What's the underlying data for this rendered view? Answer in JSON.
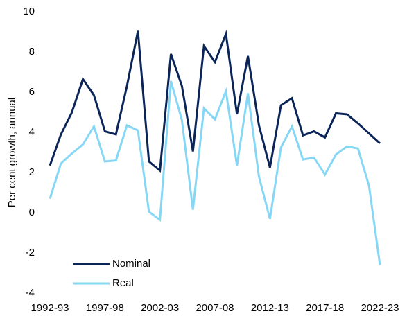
{
  "chart_data": {
    "type": "line",
    "y_label": "Per cent growth, annual",
    "categories": [
      "1992-93",
      null,
      null,
      null,
      null,
      "1997-98",
      null,
      null,
      null,
      null,
      "2002-03",
      null,
      null,
      null,
      null,
      "2007-08",
      null,
      null,
      null,
      null,
      "2012-13",
      null,
      null,
      null,
      null,
      "2017-18",
      null,
      null,
      null,
      null,
      "2022-23"
    ],
    "series": [
      {
        "name": "Nominal",
        "color": "#0b2559",
        "values": [
          2.35,
          3.9,
          5.0,
          6.65,
          5.85,
          4.05,
          3.9,
          6.3,
          9.05,
          2.55,
          2.1,
          7.9,
          6.3,
          3.05,
          8.3,
          7.5,
          8.9,
          4.9,
          7.8,
          4.35,
          2.25,
          5.35,
          5.7,
          3.85,
          4.05,
          3.75,
          4.95,
          4.9,
          4.45,
          3.95,
          3.45
        ]
      },
      {
        "name": "Real",
        "color": "#86d7f5",
        "values": [
          0.7,
          2.45,
          2.95,
          3.4,
          4.3,
          2.55,
          2.6,
          4.35,
          4.1,
          0.05,
          -0.35,
          6.55,
          4.6,
          0.15,
          5.2,
          4.65,
          6.05,
          2.35,
          5.95,
          1.8,
          -0.3,
          3.25,
          4.3,
          2.65,
          2.75,
          1.9,
          2.9,
          3.3,
          3.2,
          1.35,
          -2.6
        ]
      }
    ],
    "ylim": [
      -4,
      10
    ],
    "yticks": [
      -4,
      -2,
      0,
      2,
      4,
      6,
      8,
      10
    ],
    "grid": false,
    "legend": "lower left"
  }
}
